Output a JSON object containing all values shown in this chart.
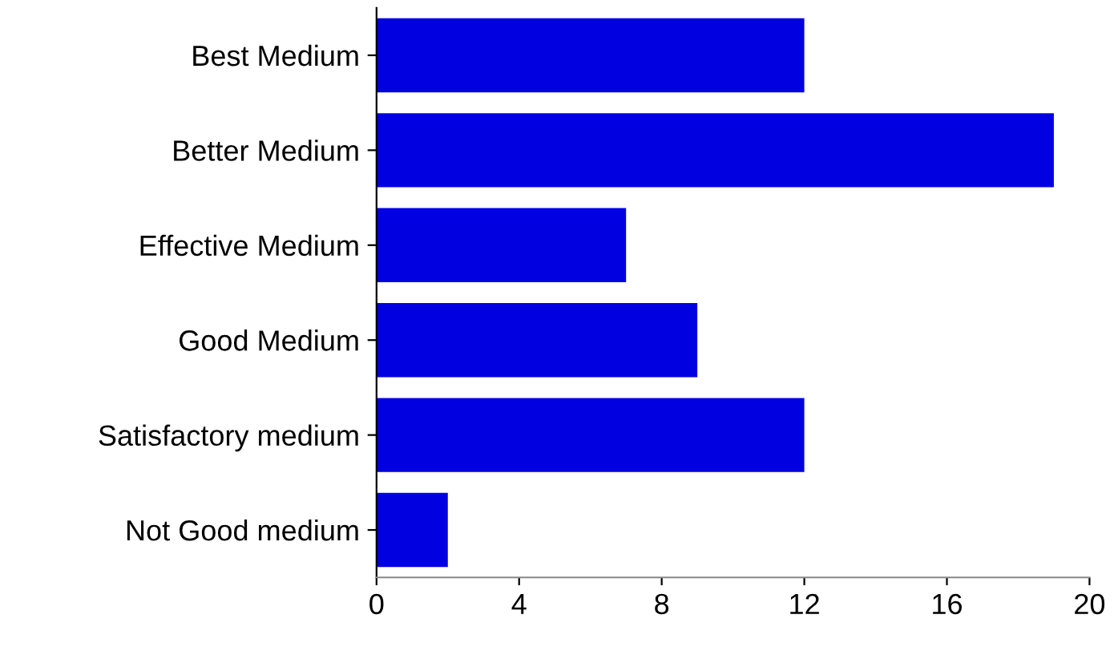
{
  "chart_data": {
    "type": "bar",
    "orientation": "horizontal",
    "categories": [
      "Best Medium",
      "Better Medium",
      "Effective Medium",
      "Good Medium",
      "Satisfactory medium",
      "Not Good medium"
    ],
    "values": [
      12,
      19,
      7,
      9,
      12,
      2
    ],
    "color": "#0000e0",
    "xlim": [
      0,
      20
    ],
    "xticks": [
      0,
      4,
      8,
      12,
      16,
      20
    ],
    "grid": false
  }
}
